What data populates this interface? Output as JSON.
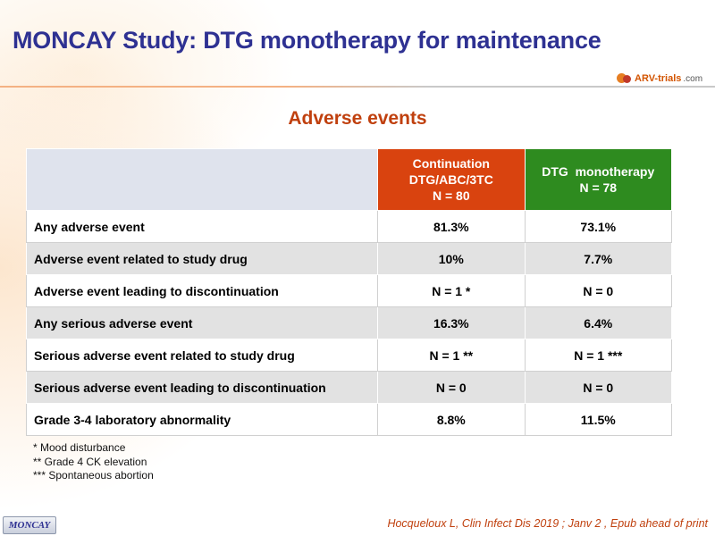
{
  "slide": {
    "title": "MONCAY Study: DTG monotherapy for maintenance",
    "logo_text": "ARV-trials",
    "logo_suffix": ".com",
    "subtitle": "Adverse events"
  },
  "table": {
    "headers": {
      "continuation": [
        "Continuation",
        "DTG/ABC/3TC",
        "N = 80"
      ],
      "monotherapy": [
        "DTG  monotherapy",
        "N = 78"
      ]
    },
    "rows": [
      {
        "label": "Any adverse event",
        "continuation": "81.3%",
        "monotherapy": "73.1%"
      },
      {
        "label": "Adverse event related to study drug",
        "continuation": "10%",
        "monotherapy": "7.7%"
      },
      {
        "label": "Adverse event leading to discontinuation",
        "continuation": "N = 1 *",
        "monotherapy": "N = 0"
      },
      {
        "label": "Any serious adverse event",
        "continuation": "16.3%",
        "monotherapy": "6.4%"
      },
      {
        "label": "Serious adverse event related to study drug",
        "continuation": "N = 1 **",
        "monotherapy": "N = 1 ***"
      },
      {
        "label": "Serious adverse event leading to discontinuation",
        "continuation": "N = 0",
        "monotherapy": "N = 0"
      },
      {
        "label": "Grade 3-4 laboratory abnormality",
        "continuation": "8.8%",
        "monotherapy": "11.5%"
      }
    ]
  },
  "footnotes": [
    "* Mood disturbance",
    "** Grade 4 CK elevation",
    "*** Spontaneous abortion"
  ],
  "footer": {
    "badge": "MONCAY",
    "citation": "Hocqueloux L, Clin Infect Dis 2019 ; Janv 2 , Epub ahead of print"
  },
  "colors": {
    "title": "#2e3192",
    "accent_orange": "#d9430f",
    "accent_green": "#2e8b1f",
    "subtitle": "#c0400e"
  }
}
